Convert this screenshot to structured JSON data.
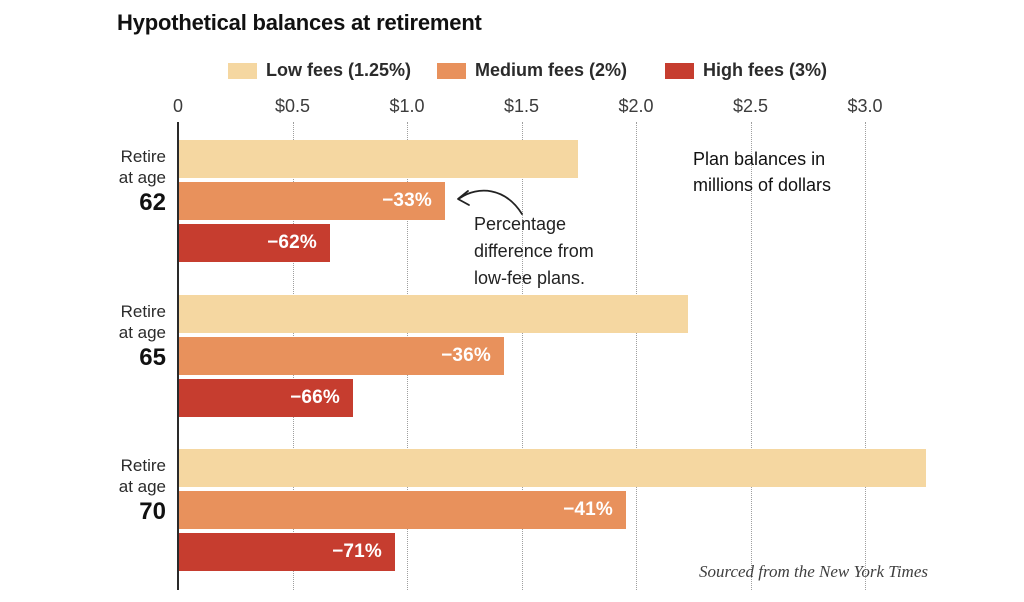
{
  "title": "Hypothetical balances at retirement",
  "units_note": "Plan balances in\nmillions of dollars",
  "annotation": {
    "text": "Percentage\ndifference from\nlow-fee plans."
  },
  "source": "Sourced from the New York Times",
  "colors": {
    "low_fees": "#f5d7a1",
    "medium_fees": "#e8915c",
    "high_fees": "#c63d2f",
    "axis": "#2a2a2a",
    "grid": "#9f9f9f"
  },
  "chart_data": {
    "type": "bar",
    "orientation": "horizontal",
    "title": "Hypothetical balances at retirement",
    "xlabel": "Plan balances in millions of dollars",
    "xlim": [
      0,
      3.5
    ],
    "grid": true,
    "legend_position": "top",
    "x_ticks": [
      {
        "v": 0,
        "label": "0"
      },
      {
        "v": 0.5,
        "label": "$0.5"
      },
      {
        "v": 1.0,
        "label": "$1.0"
      },
      {
        "v": 1.5,
        "label": "$1.5"
      },
      {
        "v": 2.0,
        "label": "$2.0"
      },
      {
        "v": 2.5,
        "label": "$2.5"
      },
      {
        "v": 3.0,
        "label": "$3.0"
      }
    ],
    "groups": [
      {
        "label": "Retire\nat age",
        "age": "62"
      },
      {
        "label": "Retire\nat age",
        "age": "65"
      },
      {
        "label": "Retire\nat age",
        "age": "70"
      }
    ],
    "series": [
      {
        "name": "Low fees (1.25%)",
        "color": "#f5d7a1",
        "values": [
          1.75,
          2.23,
          3.27
        ],
        "bar_labels": [
          "",
          "",
          ""
        ]
      },
      {
        "name": "Medium fees (2%)",
        "color": "#e8915c",
        "values": [
          1.17,
          1.43,
          1.96
        ],
        "bar_labels": [
          "−33%",
          "−36%",
          "−41%"
        ]
      },
      {
        "name": "High fees (3%)",
        "color": "#c63d2f",
        "values": [
          0.67,
          0.77,
          0.95
        ],
        "bar_labels": [
          "−62%",
          "−66%",
          "−71%"
        ]
      }
    ]
  }
}
